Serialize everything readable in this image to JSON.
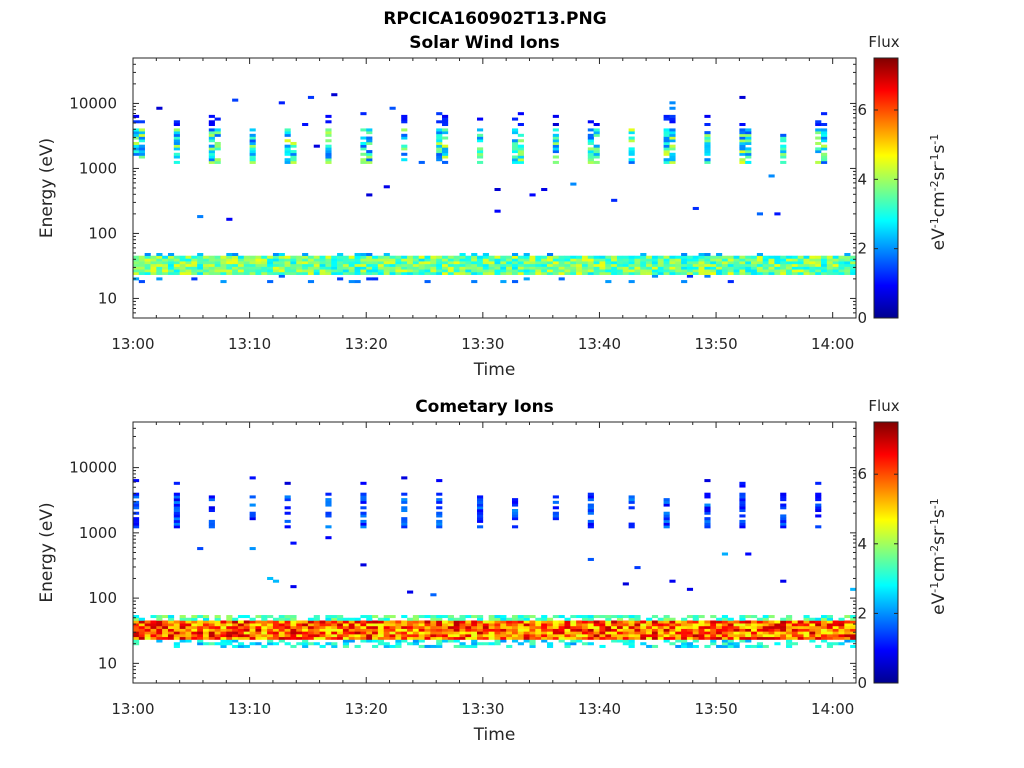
{
  "figure": {
    "title": "RPCICA160902T13.PNG"
  },
  "chart_data": [
    {
      "type": "heatmap",
      "title": "Solar Wind Ions",
      "xlabel": "Time",
      "ylabel": "Energy (eV)",
      "y_scale": "log",
      "ylim": [
        5,
        50000
      ],
      "xlim": [
        "13:00",
        "14:02"
      ],
      "x_ticks": [
        "13:00",
        "13:10",
        "13:20",
        "13:30",
        "13:40",
        "13:50",
        "14:00"
      ],
      "y_ticks": [
        "10",
        "100",
        "1000",
        "10000"
      ],
      "colorbar": {
        "label": "Flux",
        "unit": "eV-1cm-2sr-1s-1",
        "ticks": [
          "0",
          "2",
          "4",
          "6"
        ],
        "range": [
          0,
          7.5
        ]
      },
      "profile": "solar",
      "summary": [
        {
          "band_eV": [
            22,
            45
          ],
          "flux_level": 3.5,
          "note": "continuous low-energy band"
        },
        {
          "band_eV": [
            1200,
            4000
          ],
          "flux_level": 2.5,
          "note": "periodic bursts about every 3 minutes"
        },
        {
          "band_eV": [
            4000,
            16000
          ],
          "flux_level": 1.0,
          "note": "sparse high-energy points"
        }
      ]
    },
    {
      "type": "heatmap",
      "title": "Cometary Ions",
      "xlabel": "Time",
      "ylabel": "Energy (eV)",
      "y_scale": "log",
      "ylim": [
        5,
        50000
      ],
      "xlim": [
        "13:00",
        "14:02"
      ],
      "x_ticks": [
        "13:00",
        "13:10",
        "13:20",
        "13:30",
        "13:40",
        "13:50",
        "14:00"
      ],
      "y_ticks": [
        "10",
        "100",
        "1000",
        "10000"
      ],
      "colorbar": {
        "label": "Flux",
        "unit": "eV-1cm-2sr-1s-1",
        "ticks": [
          "0",
          "2",
          "4",
          "6"
        ],
        "range": [
          0,
          7.5
        ]
      },
      "profile": "comet",
      "summary": [
        {
          "band_eV": [
            20,
            50
          ],
          "flux_level": 6.0,
          "note": "intense continuous low-energy band"
        },
        {
          "band_eV": [
            1200,
            4000
          ],
          "flux_level": 1.2,
          "note": "periodic sparse bursts"
        },
        {
          "band_eV": [
            100,
            800
          ],
          "flux_level": 1.0,
          "note": "scattered mid-energy points"
        }
      ]
    }
  ]
}
